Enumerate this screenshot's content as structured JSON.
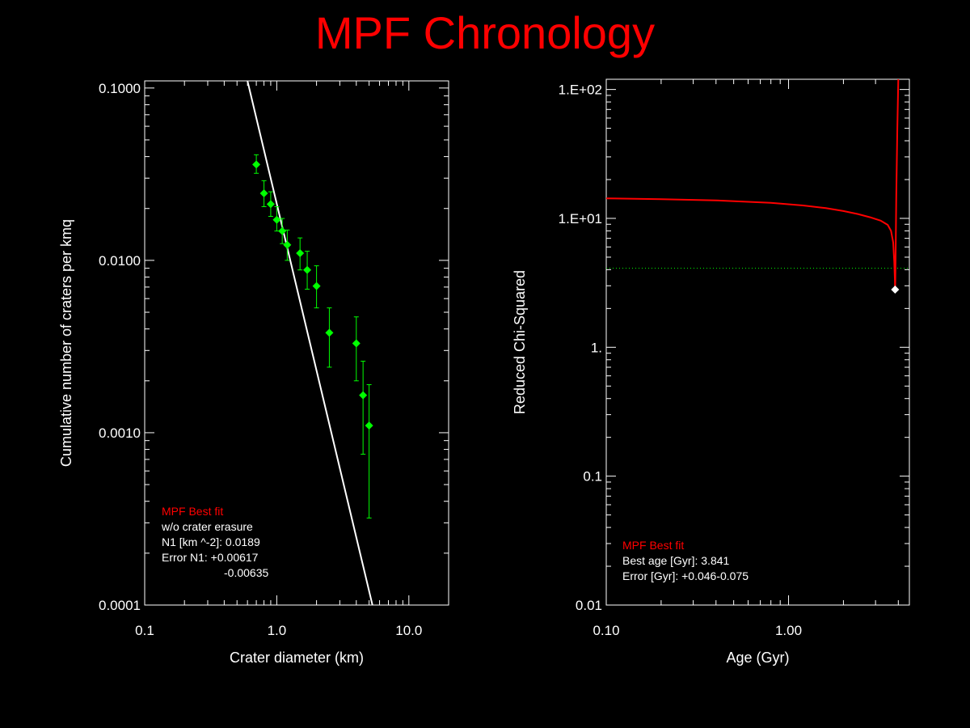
{
  "title": "MPF Chronology",
  "colors": {
    "background": "#000000",
    "title": "#ff0000",
    "axes": "#ffffff",
    "points": "#00ff00",
    "fit_line": "#ffffff",
    "chi_curve": "#ff0000",
    "threshold_line": "#00ff00",
    "best_marker": "#ffffff",
    "legend_heading": "#ff0000"
  },
  "chart_data": [
    {
      "type": "scatter",
      "xscale": "log",
      "yscale": "log",
      "xlim": [
        0.1,
        20
      ],
      "ylim": [
        0.0001,
        0.11
      ],
      "xlabel": "Crater diameter (km)",
      "ylabel": "Cumulative number of craters per kmq",
      "xticks": [
        0.1,
        1.0,
        10.0
      ],
      "xtick_labels": [
        "0.1",
        "1.0",
        "10.0"
      ],
      "yticks": [
        0.0001,
        0.001,
        0.01,
        0.1
      ],
      "ytick_labels": [
        "0.0001",
        "0.0010",
        "0.0100",
        "0.1000"
      ],
      "grid": false,
      "points": [
        {
          "x": 0.7,
          "y": 0.036,
          "ylo": 0.032,
          "yhi": 0.041
        },
        {
          "x": 0.8,
          "y": 0.0245,
          "ylo": 0.0205,
          "yhi": 0.029
        },
        {
          "x": 0.9,
          "y": 0.0212,
          "ylo": 0.018,
          "yhi": 0.025
        },
        {
          "x": 1.0,
          "y": 0.0172,
          "ylo": 0.0148,
          "yhi": 0.0205
        },
        {
          "x": 1.1,
          "y": 0.0148,
          "ylo": 0.0125,
          "yhi": 0.0175
        },
        {
          "x": 1.2,
          "y": 0.0123,
          "ylo": 0.01,
          "yhi": 0.015
        },
        {
          "x": 1.5,
          "y": 0.011,
          "ylo": 0.0088,
          "yhi": 0.0135
        },
        {
          "x": 1.7,
          "y": 0.0088,
          "ylo": 0.0068,
          "yhi": 0.0113
        },
        {
          "x": 2.0,
          "y": 0.0071,
          "ylo": 0.0053,
          "yhi": 0.0093
        },
        {
          "x": 2.5,
          "y": 0.0038,
          "ylo": 0.0024,
          "yhi": 0.0053
        },
        {
          "x": 4.0,
          "y": 0.0033,
          "ylo": 0.002,
          "yhi": 0.0047
        },
        {
          "x": 4.5,
          "y": 0.00165,
          "ylo": 0.00075,
          "yhi": 0.0026
        },
        {
          "x": 5.0,
          "y": 0.0011,
          "ylo": 0.00032,
          "yhi": 0.0019
        }
      ],
      "fit_line": [
        [
          0.6,
          0.11
        ],
        [
          5.3,
          0.0001
        ]
      ],
      "legend": {
        "heading": "MPF Best fit",
        "lines": [
          "w/o crater erasure",
          "N1 [km ^-2]: 0.0189",
          "Error N1: +0.00617",
          "-0.00635"
        ]
      }
    },
    {
      "type": "line",
      "xscale": "log",
      "yscale": "log",
      "xlim": [
        0.1,
        4.6
      ],
      "ylim": [
        0.01,
        120
      ],
      "xlabel": "Age (Gyr)",
      "ylabel": "Reduced Chi-Squared",
      "xticks": [
        0.1,
        1.0
      ],
      "xtick_labels": [
        "0.10",
        "1.00"
      ],
      "yticks": [
        0.01,
        0.1,
        1,
        10,
        100
      ],
      "ytick_labels": [
        "0.01",
        "0.1",
        "1.",
        "1.E+01",
        "1.E+02"
      ],
      "grid": false,
      "series": [
        {
          "x": [
            0.1,
            0.2,
            0.4,
            0.8,
            1.2,
            1.6,
            2.0,
            2.4,
            2.8,
            3.2,
            3.5,
            3.65,
            3.75,
            3.8,
            3.83,
            3.841,
            3.85,
            3.87,
            3.9,
            3.95,
            4.0
          ],
          "y": [
            14.3,
            14.1,
            13.8,
            13.2,
            12.6,
            12.0,
            11.4,
            10.8,
            10.2,
            9.6,
            8.9,
            8.0,
            6.5,
            4.6,
            3.3,
            2.8,
            3.3,
            6.0,
            15.0,
            50.0,
            120.0
          ]
        }
      ],
      "threshold_y": 4.1,
      "best_point": {
        "x": 3.841,
        "y": 2.8
      },
      "legend": {
        "heading": "MPF Best fit",
        "lines": [
          "Best age [Gyr]: 3.841",
          "Error [Gyr]: +0.046-0.075"
        ]
      }
    }
  ]
}
